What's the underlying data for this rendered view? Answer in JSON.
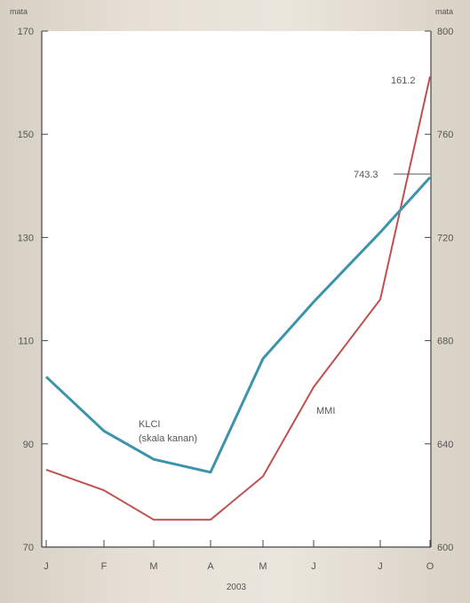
{
  "chart_data": {
    "type": "line",
    "categories": [
      "J",
      "F",
      "M",
      "A",
      "M",
      "J",
      "J",
      "O"
    ],
    "x_title": "2003",
    "left_axis": {
      "unit": "mata",
      "ylim": [
        70,
        170
      ],
      "ticks": [
        70,
        90,
        110,
        130,
        150,
        170
      ]
    },
    "right_axis": {
      "unit": "mata",
      "ylim": [
        600,
        800
      ],
      "ticks": [
        600,
        640,
        680,
        720,
        760,
        800
      ]
    },
    "series": [
      {
        "name": "MMI",
        "axis": "left",
        "color": "#c0504f",
        "values": [
          85.0,
          81.0,
          75.3,
          75.3,
          83.7,
          101.0,
          118.0,
          161.2
        ],
        "label": "MMI",
        "end_label": "161.2"
      },
      {
        "name": "KLCI",
        "axis": "right",
        "color": "#3c93aa",
        "values": [
          666,
          645,
          634,
          629,
          673,
          695,
          722,
          743.3
        ],
        "label": [
          "KLCI",
          "(skala kanan)"
        ],
        "end_label": "743.3"
      }
    ],
    "grid": false,
    "legend": "none"
  }
}
